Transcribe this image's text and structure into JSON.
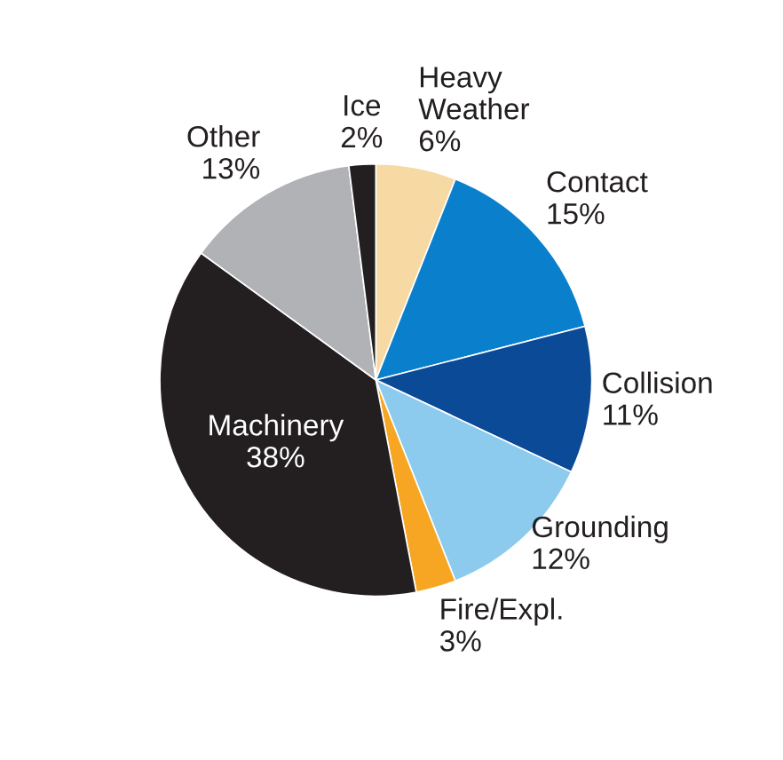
{
  "chart_data": {
    "type": "pie",
    "categories": [
      "Heavy Weather",
      "Contact",
      "Collision",
      "Grounding",
      "Fire/Expl.",
      "Machinery",
      "Other",
      "Ice"
    ],
    "values": [
      6,
      15,
      11,
      12,
      3,
      38,
      13,
      2
    ],
    "colors": [
      "#f7d9a3",
      "#0a7fcc",
      "#0b4a96",
      "#8ccaee",
      "#f6a623",
      "#231f20",
      "#b1b2b6",
      "#231f20"
    ],
    "value_labels": [
      "6%",
      "15%",
      "11%",
      "12%",
      "3%",
      "38%",
      "13%",
      "2%"
    ]
  }
}
